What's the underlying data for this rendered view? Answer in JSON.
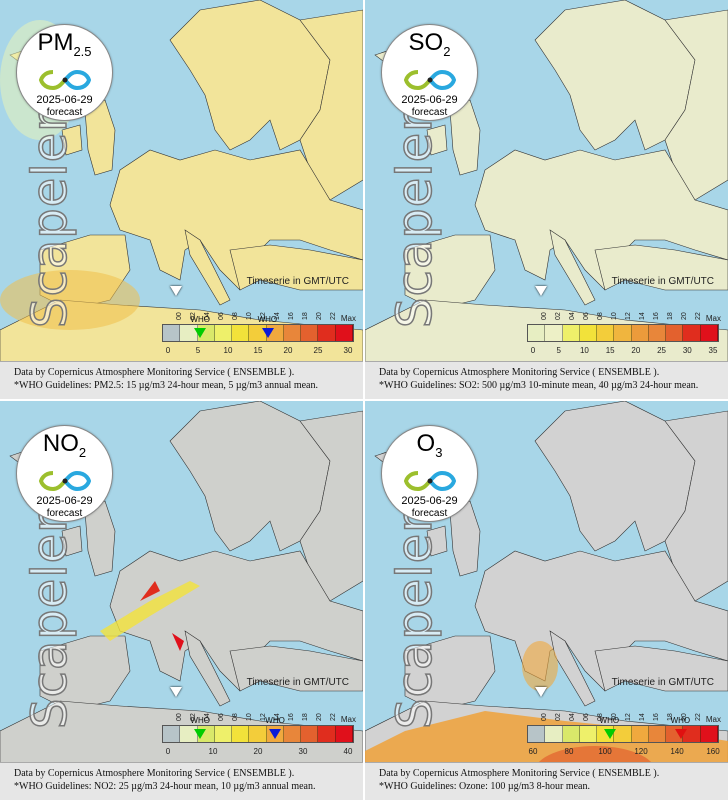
{
  "panels": [
    {
      "pollutant": "PM",
      "subscript": "2.5",
      "date": "2025-06-29",
      "label": "forecast",
      "brand": "Scapeler",
      "timeseries_note": "Timeserie in GMT/UTC",
      "timeline": [
        "00",
        "02",
        "04",
        "06",
        "08",
        "10",
        "12",
        "14",
        "16",
        "18",
        "20",
        "22"
      ],
      "legend_ticks": [
        "0",
        "5",
        "10",
        "15",
        "20",
        "25",
        "30"
      ],
      "legend_max": "Max",
      "who_markers": [
        {
          "label": "WHO",
          "value": "5",
          "color": "#00cc00",
          "fraction": 0.2
        },
        {
          "label": "WHO",
          "value": "15",
          "color": "#0a1bd6",
          "fraction": 0.55
        }
      ],
      "attribution": "Data by Copernicus Atmosphere Monitoring Service ( ENSEMBLE ).",
      "guidelines": "*WHO Guidelines: PM2.5: 15 µg/m3 24-hour mean, 5 µg/m3 annual mean.",
      "colors": [
        "#b7c4c8",
        "#e7eec2",
        "#d9e86a",
        "#eef06a",
        "#f2e23a",
        "#f3cd3a",
        "#f0a93e",
        "#e8863a",
        "#e3612e",
        "#e02d1e",
        "#e0101b"
      ]
    },
    {
      "pollutant": "SO",
      "subscript": "2",
      "date": "2025-06-29",
      "label": "forecast",
      "brand": "Scapeler",
      "timeseries_note": "Timeserie in GMT/UTC",
      "timeline": [
        "00",
        "02",
        "04",
        "06",
        "08",
        "10",
        "12",
        "14",
        "16",
        "18",
        "20",
        "22"
      ],
      "legend_ticks": [
        "0",
        "5",
        "10",
        "15",
        "20",
        "25",
        "30",
        "35"
      ],
      "legend_max": "Max",
      "who_markers": [],
      "attribution": "Data by Copernicus Atmosphere Monitoring Service ( ENSEMBLE ).",
      "guidelines": "*WHO Guidelines: SO2: 500 µg/m3 10-minute mean, 40 µg/m3 24-hour mean.",
      "colors": [
        "#e7eec2",
        "#edf0c6",
        "#eef06a",
        "#f2e23a",
        "#f3cd3a",
        "#f0b53e",
        "#ec9b3b",
        "#e8863a",
        "#e3612e",
        "#e02d1e",
        "#e0101b"
      ]
    },
    {
      "pollutant": "NO",
      "subscript": "2",
      "date": "2025-06-29",
      "label": "forecast",
      "brand": "Scapeler",
      "timeseries_note": "Timeserie in GMT/UTC",
      "timeline": [
        "00",
        "02",
        "04",
        "06",
        "08",
        "10",
        "12",
        "14",
        "16",
        "18",
        "20",
        "22"
      ],
      "legend_ticks": [
        "0",
        "10",
        "20",
        "30",
        "40"
      ],
      "legend_max": "Max",
      "who_markers": [
        {
          "label": "WHO",
          "value": "10",
          "color": "#00cc00",
          "fraction": 0.2
        },
        {
          "label": "WHO",
          "value": "25",
          "color": "#0a1bd6",
          "fraction": 0.59
        }
      ],
      "attribution": "Data by Copernicus Atmosphere Monitoring Service ( ENSEMBLE ).",
      "guidelines": "*WHO Guidelines: NO2: 25 µg/m3 24-hour mean, 10 µg/m3 annual mean.",
      "colors": [
        "#b7c4c8",
        "#e7eec2",
        "#d9e86a",
        "#eef06a",
        "#f2e23a",
        "#f3cd3a",
        "#f0a93e",
        "#e8863a",
        "#e3612e",
        "#e02d1e",
        "#e0101b"
      ]
    },
    {
      "pollutant": "O",
      "subscript": "3",
      "date": "2025-06-29",
      "label": "forecast",
      "brand": "Scapeler",
      "timeseries_note": "Timeserie in GMT/UTC",
      "timeline": [
        "00",
        "02",
        "04",
        "06",
        "08",
        "10",
        "12",
        "14",
        "16",
        "18",
        "20",
        "22"
      ],
      "legend_ticks": [
        "60",
        "80",
        "100",
        "120",
        "140",
        "160"
      ],
      "legend_max": "Max",
      "who_markers": [
        {
          "label": "WHO",
          "value": "100",
          "color": "#00cc00",
          "fraction": 0.43
        },
        {
          "label": "WHO",
          "value": "140",
          "color": "#e01010",
          "fraction": 0.8
        }
      ],
      "attribution": "Data by Copernicus Atmosphere Monitoring Service ( ENSEMBLE ).",
      "guidelines": "*WHO Guidelines: Ozone: 100 µg/m3 8-hour mean.",
      "colors": [
        "#b7c4c8",
        "#e7eec2",
        "#d9e86a",
        "#eef06a",
        "#f2e23a",
        "#f3cd3a",
        "#f0a93e",
        "#e8863a",
        "#e3612e",
        "#e02d1e",
        "#e0101b"
      ]
    }
  ],
  "map_style": {
    "sea": "#a8d6e8",
    "land_pm": "#f2e49a",
    "land_so": "#e9ebcc",
    "land_no": "#cfd0cc",
    "land_o3": "#d2d2d2",
    "hot": "#f0a23a",
    "border": "#333333"
  }
}
